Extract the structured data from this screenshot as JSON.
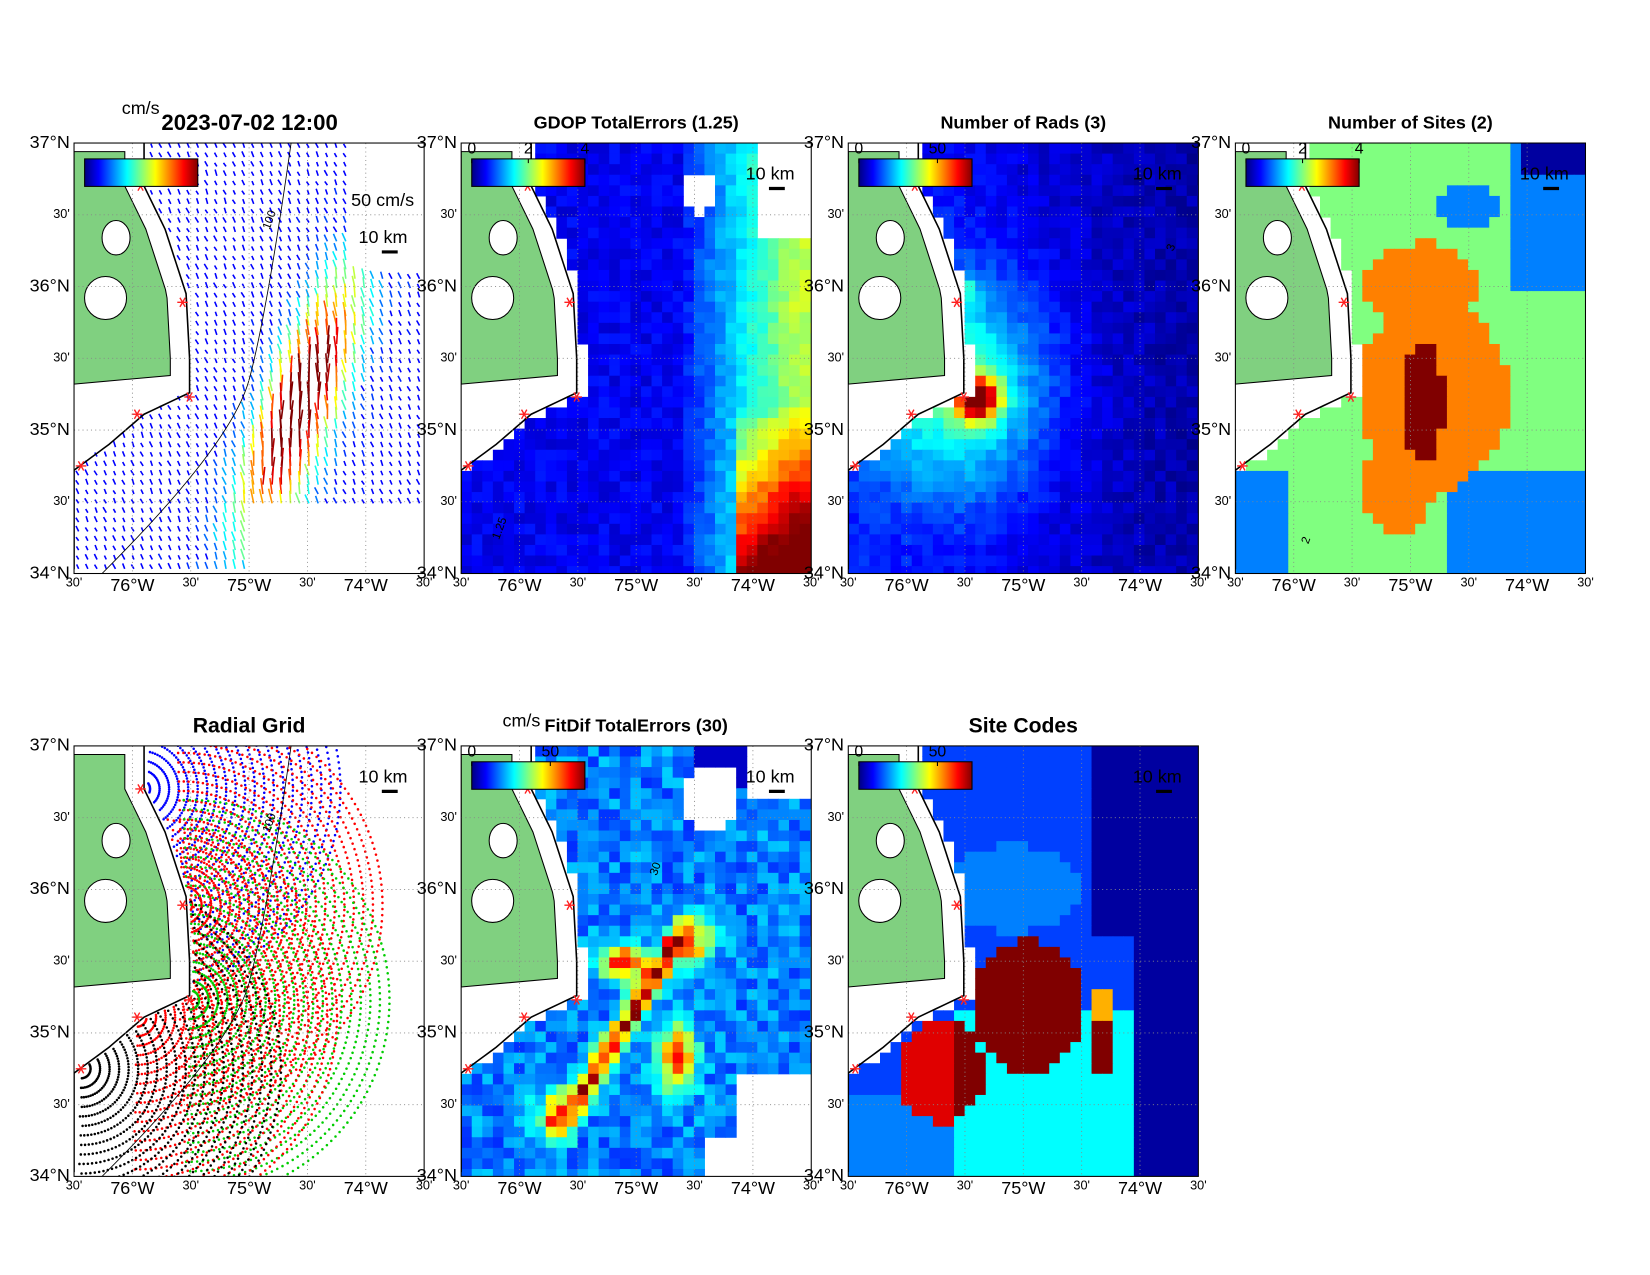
{
  "lat_labels": [
    "37°N",
    "30'",
    "36°N",
    "30'",
    "35°N",
    "30'",
    "34°N"
  ],
  "lon_labels": [
    "30'",
    "76°W",
    "30'",
    "75°W",
    "30'",
    "74°W",
    "30'"
  ],
  "panels": [
    {
      "title": "2023-07-02 12:00",
      "unit": "cm/s",
      "vector_scale_label": "50 cm/s",
      "scale_label": "10 km",
      "contour_label": "100"
    },
    {
      "title": "GDOP TotalErrors (1.25)",
      "colorbar": {
        "clim": [
          0,
          4
        ],
        "ticks": [
          0,
          2,
          4
        ]
      },
      "scale_label": "10 km",
      "contour_label": "1.25"
    },
    {
      "title": "Number of Rads (3)",
      "colorbar": {
        "clim": [
          0,
          72
        ],
        "ticks": [
          0,
          50
        ]
      },
      "scale_label": "10 km",
      "contour_label": "3"
    },
    {
      "title": "Number of Sites (2)",
      "colorbar": {
        "clim": [
          0,
          4
        ],
        "ticks": [
          0,
          2,
          4
        ]
      },
      "scale_label": "10 km",
      "contour_label": "2"
    },
    {
      "title": "Radial Grid",
      "scale_label": "10 km",
      "contour_label": "100"
    },
    {
      "title": "FitDif TotalErrors (30)",
      "unit": "cm/s",
      "colorbar": {
        "clim": [
          0,
          72
        ],
        "ticks": [
          0,
          50
        ]
      },
      "scale_label": "10 km",
      "contour_label": "30"
    },
    {
      "title": "Site Codes",
      "colorbar": {
        "clim": [
          0,
          72
        ],
        "ticks": [
          0,
          50
        ]
      },
      "scale_label": "10 km"
    }
  ]
}
